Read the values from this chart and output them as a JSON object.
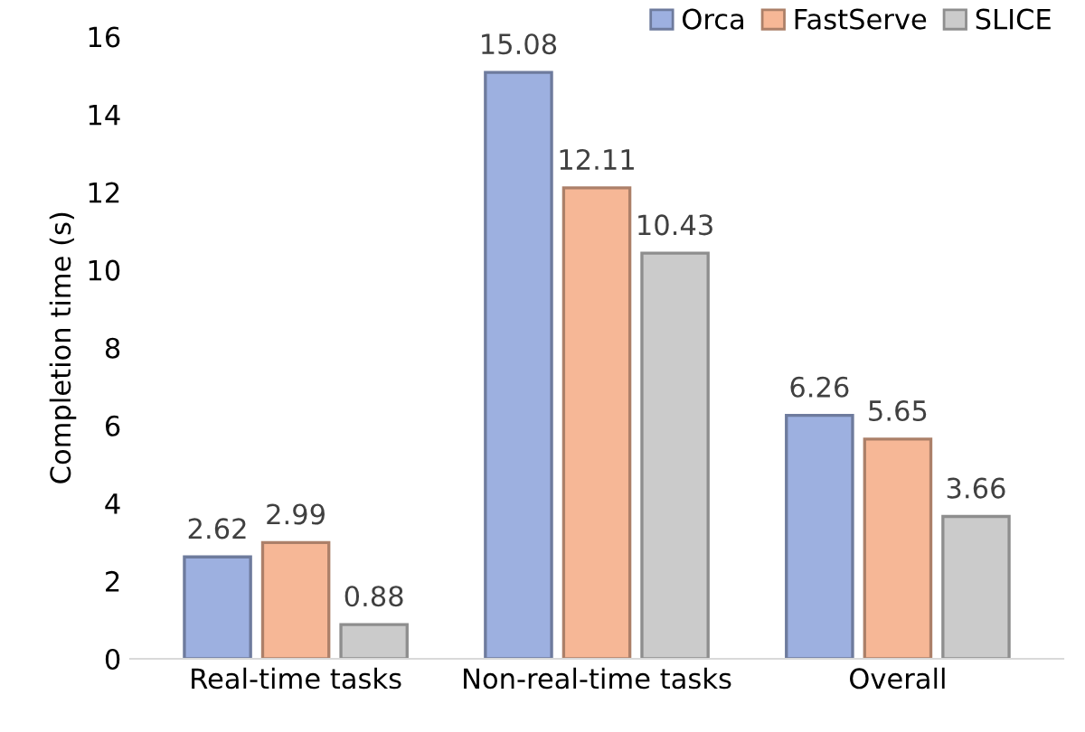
{
  "chart_data": {
    "type": "bar",
    "ylabel": "Completion time (s)",
    "categories": [
      "Real-time tasks",
      "Non-real-time tasks",
      "Overall"
    ],
    "series": [
      {
        "name": "Orca",
        "color": "#9db0e0",
        "values": [
          2.62,
          15.08,
          6.26
        ]
      },
      {
        "name": "FastServe",
        "color": "#f6b796",
        "values": [
          2.99,
          12.11,
          5.65
        ]
      },
      {
        "name": "SLICE",
        "color": "#cbcbcb",
        "values": [
          0.88,
          10.43,
          3.66
        ]
      }
    ],
    "ylim": [
      0,
      16
    ],
    "yticks": [
      0,
      2,
      4,
      6,
      8,
      10,
      12,
      14,
      16
    ],
    "data_labels": true,
    "legend": "top right",
    "grid": false
  }
}
